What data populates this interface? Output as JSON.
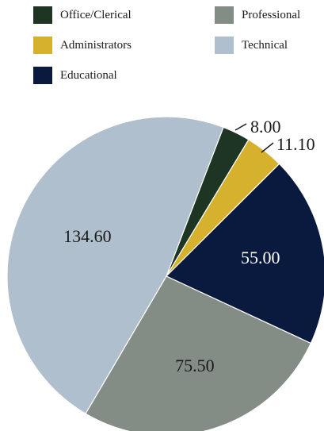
{
  "chart_data": {
    "type": "pie",
    "legend_position": "top",
    "slices": [
      {
        "label": "Office/Clerical",
        "value": 8.0,
        "value_label": "8.00",
        "color": "#1d3522",
        "label_color": "#1a1a1a"
      },
      {
        "label": "Administrators",
        "value": 11.1,
        "value_label": "11.10",
        "color": "#d6b12e",
        "label_color": "#1a1a1a"
      },
      {
        "label": "Educational",
        "value": 55.0,
        "value_label": "55.00",
        "color": "#0a1a3f",
        "label_color": "#ffffff"
      },
      {
        "label": "Professional",
        "value": 75.5,
        "value_label": "75.50",
        "color": "#838c85",
        "label_color": "#1a1a1a"
      },
      {
        "label": "Technical",
        "value": 134.6,
        "value_label": "134.60",
        "color": "#b0bfce",
        "label_color": "#1a1a1a"
      }
    ]
  }
}
